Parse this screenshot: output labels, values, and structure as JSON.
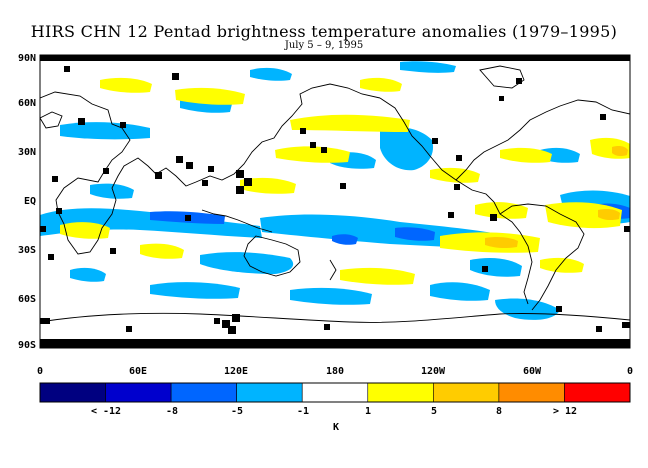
{
  "title": "HIRS CHN 12 Pentad brightness temperature anomalies (1979–1995)",
  "subtitle": "July 5 – 9, 1995",
  "lat_labels": [
    "90N",
    "60N",
    "30N",
    "EQ",
    "30S",
    "60S",
    "90S"
  ],
  "lon_labels": [
    "0",
    "60E",
    "120E",
    "180",
    "120W",
    "60W",
    "0"
  ],
  "colorbar": {
    "colors": [
      "#000080",
      "#0000cd",
      "#0066ff",
      "#00b4ff",
      "#ffffff",
      "#ffff00",
      "#ffcc00",
      "#ff8c00",
      "#ff0000"
    ],
    "labels": [
      "< -12",
      "-8",
      "-5",
      "-1",
      "1",
      "5",
      "8",
      "> 12"
    ],
    "unit": "K"
  },
  "map_colors": {
    "light_blue": "#00b4ff",
    "blue": "#0066ff",
    "yellow": "#ffff00",
    "orange": "#ffcc00",
    "missing": "#000000",
    "background": "#ffffff"
  }
}
